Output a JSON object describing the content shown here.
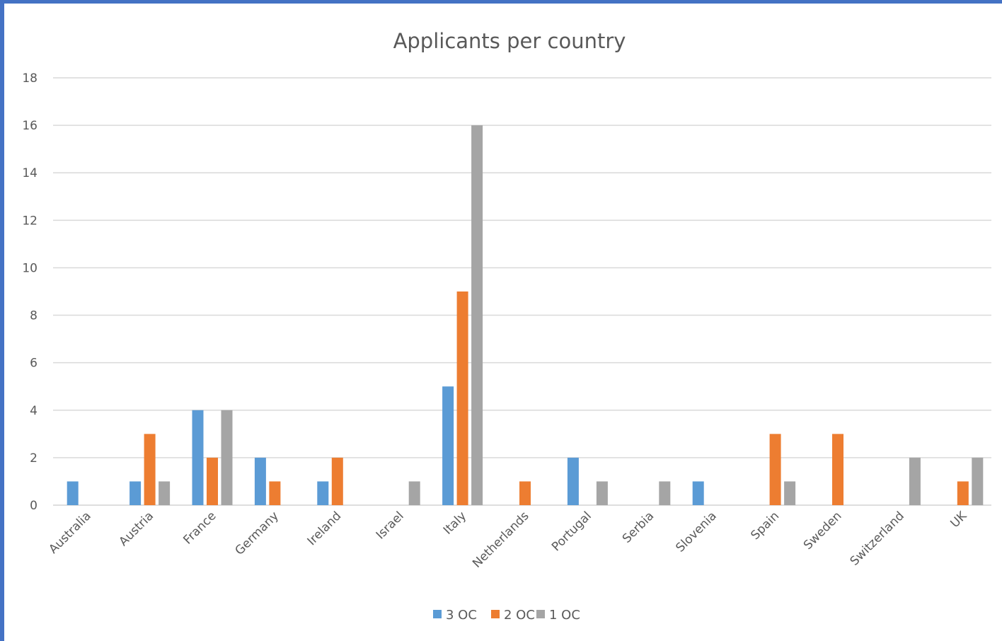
{
  "chart_data": {
    "type": "bar",
    "title": "Applicants per country",
    "xlabel": "",
    "ylabel": "",
    "ylim": [
      0,
      18
    ],
    "yticks": [
      0,
      2,
      4,
      6,
      8,
      10,
      12,
      14,
      16,
      18
    ],
    "grid": true,
    "legend_position": "bottom",
    "categories": [
      "Australia",
      "Austria",
      "France",
      "Germany",
      "Ireland",
      "Israel",
      "Italy",
      "Netherlands",
      "Portugal",
      "Serbia",
      "Slovenia",
      "Spain",
      "Sweden",
      "Switzerland",
      "UK"
    ],
    "series": [
      {
        "name": "3 OC",
        "color": "#5b9bd5",
        "values": [
          1,
          1,
          4,
          2,
          1,
          0,
          5,
          0,
          2,
          0,
          1,
          0,
          0,
          0,
          0
        ]
      },
      {
        "name": "2 OC",
        "color": "#ed7d31",
        "values": [
          0,
          3,
          2,
          1,
          2,
          0,
          9,
          1,
          0,
          0,
          0,
          3,
          3,
          0,
          1
        ]
      },
      {
        "name": "1 OC",
        "color": "#a5a5a5",
        "values": [
          0,
          1,
          4,
          0,
          0,
          1,
          16,
          0,
          1,
          1,
          0,
          1,
          0,
          2,
          2
        ]
      }
    ]
  }
}
